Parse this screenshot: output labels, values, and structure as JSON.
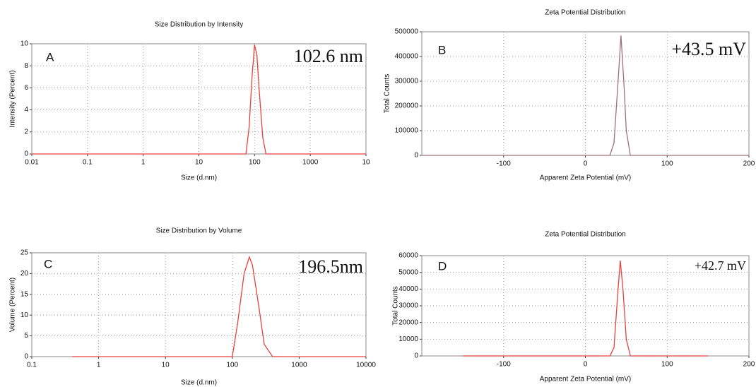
{
  "chart_data": [
    {
      "type": "line",
      "title": "Size Distribution by Intensity",
      "xlabel": "Size (d.nm)",
      "ylabel": "Intensity (Percent)",
      "panel_label": "A",
      "annotation": "102.6 nm",
      "xscale": "log",
      "grid": true,
      "xlim": [
        0.01,
        10000
      ],
      "xticks": [
        0.01,
        0.1,
        1,
        10,
        100,
        1000,
        {
          "value": 10000,
          "label": "10"
        }
      ],
      "ylim": [
        0,
        10
      ],
      "yticks": [
        0,
        2,
        4,
        6,
        8,
        10
      ],
      "series": [
        {
          "color": "#e8413c",
          "x": [
            0.01,
            70,
            80,
            90,
            100,
            110,
            120,
            140,
            160,
            10000
          ],
          "values": [
            0,
            0,
            2.5,
            7,
            9.9,
            9,
            6,
            1.5,
            0,
            0
          ]
        }
      ]
    },
    {
      "type": "line",
      "title": "Zeta Potential Distribution",
      "xlabel": "Apparent Zeta Potential (mV)",
      "ylabel": "Total Counts",
      "panel_label": "B",
      "annotation": "+43.5 mV",
      "grid": true,
      "xlim": [
        -200,
        200
      ],
      "xticks": [
        -100,
        0,
        100,
        200
      ],
      "ylim": [
        0,
        500000
      ],
      "yticks": [
        0,
        100000,
        200000,
        300000,
        400000,
        500000
      ],
      "series": [
        {
          "color": "#a0707a",
          "x": [
            -200,
            30,
            35,
            40,
            43.5,
            47,
            50,
            55,
            200
          ],
          "values": [
            0,
            0,
            50000,
            300000,
            485000,
            300000,
            100000,
            0,
            0
          ]
        }
      ]
    },
    {
      "type": "line",
      "title": "Size Distribution by Volume",
      "xlabel": "Size (d.nm)",
      "ylabel": "Volume (Percent)",
      "panel_label": "C",
      "annotation": "196.5nm",
      "xscale": "log",
      "grid": true,
      "xlim": [
        0.1,
        10000
      ],
      "xticks": [
        0.1,
        1,
        10,
        100,
        1000,
        10000
      ],
      "ylim": [
        0,
        25
      ],
      "yticks": [
        0,
        5,
        10,
        15,
        20,
        25
      ],
      "series": [
        {
          "color": "#e8413c",
          "x": [
            0.4,
            100,
            120,
            150,
            180,
            200,
            250,
            300,
            400,
            10000
          ],
          "values": [
            0,
            0,
            8,
            20,
            24,
            22,
            12,
            3,
            0,
            0
          ]
        }
      ]
    },
    {
      "type": "line",
      "title": "Zeta Potential Distribution",
      "xlabel": "Apparent Zeta Potential (mV)",
      "ylabel": "Total Counts",
      "panel_label": "D",
      "annotation": "+42.7 mV",
      "grid": true,
      "xlim": [
        -200,
        200
      ],
      "xticks": [
        -100,
        0,
        100,
        200
      ],
      "ylim": [
        0,
        60000
      ],
      "yticks": [
        0,
        10000,
        20000,
        30000,
        40000,
        50000,
        60000
      ],
      "series": [
        {
          "color": "#e8413c",
          "x": [
            -150,
            30,
            35,
            40,
            42.7,
            46,
            50,
            55,
            150
          ],
          "values": [
            0,
            0,
            5000,
            40000,
            57000,
            40000,
            10000,
            0,
            0
          ]
        }
      ]
    }
  ]
}
